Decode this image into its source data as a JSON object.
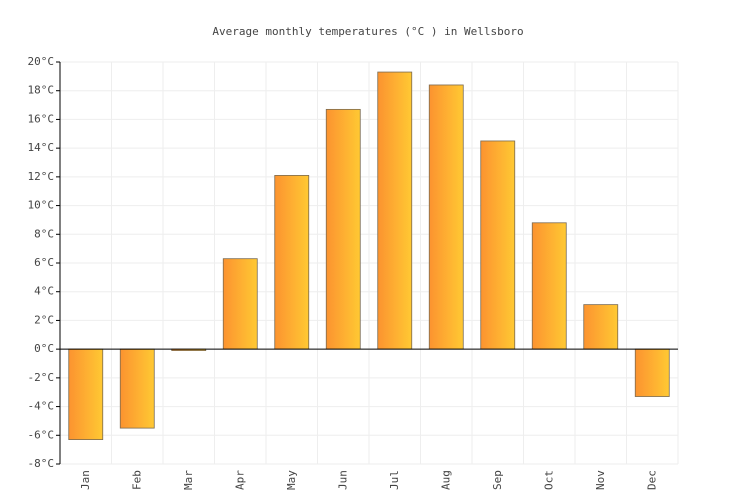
{
  "chart_data": {
    "type": "bar",
    "title": "Average monthly temperatures (°C ) in Wellsboro",
    "categories": [
      "Jan",
      "Feb",
      "Mar",
      "Apr",
      "May",
      "Jun",
      "Jul",
      "Aug",
      "Sep",
      "Oct",
      "Nov",
      "Dec"
    ],
    "values": [
      -6.3,
      -5.5,
      -0.1,
      6.3,
      12.1,
      16.7,
      19.3,
      18.4,
      14.5,
      8.8,
      3.1,
      -3.3
    ],
    "gradient": [
      "#fc9330",
      "#ffc933"
    ],
    "ylim": [
      -8,
      20
    ],
    "yticks": [
      {
        "value": -8,
        "label": "-8°C"
      },
      {
        "value": -6,
        "label": "-6°C"
      },
      {
        "value": -4,
        "label": "-4°C"
      },
      {
        "value": -2,
        "label": "-2°C"
      },
      {
        "value": 0,
        "label": "0°C"
      },
      {
        "value": 2,
        "label": "2°C"
      },
      {
        "value": 4,
        "label": "4°C"
      },
      {
        "value": 6,
        "label": "6°C"
      },
      {
        "value": 8,
        "label": "8°C"
      },
      {
        "value": 10,
        "label": "10°C"
      },
      {
        "value": 12,
        "label": "12°C"
      },
      {
        "value": 14,
        "label": "14°C"
      },
      {
        "value": 16,
        "label": "16°C"
      },
      {
        "value": 18,
        "label": "18°C"
      },
      {
        "value": 20,
        "label": "20°C"
      }
    ],
    "grid": true
  }
}
